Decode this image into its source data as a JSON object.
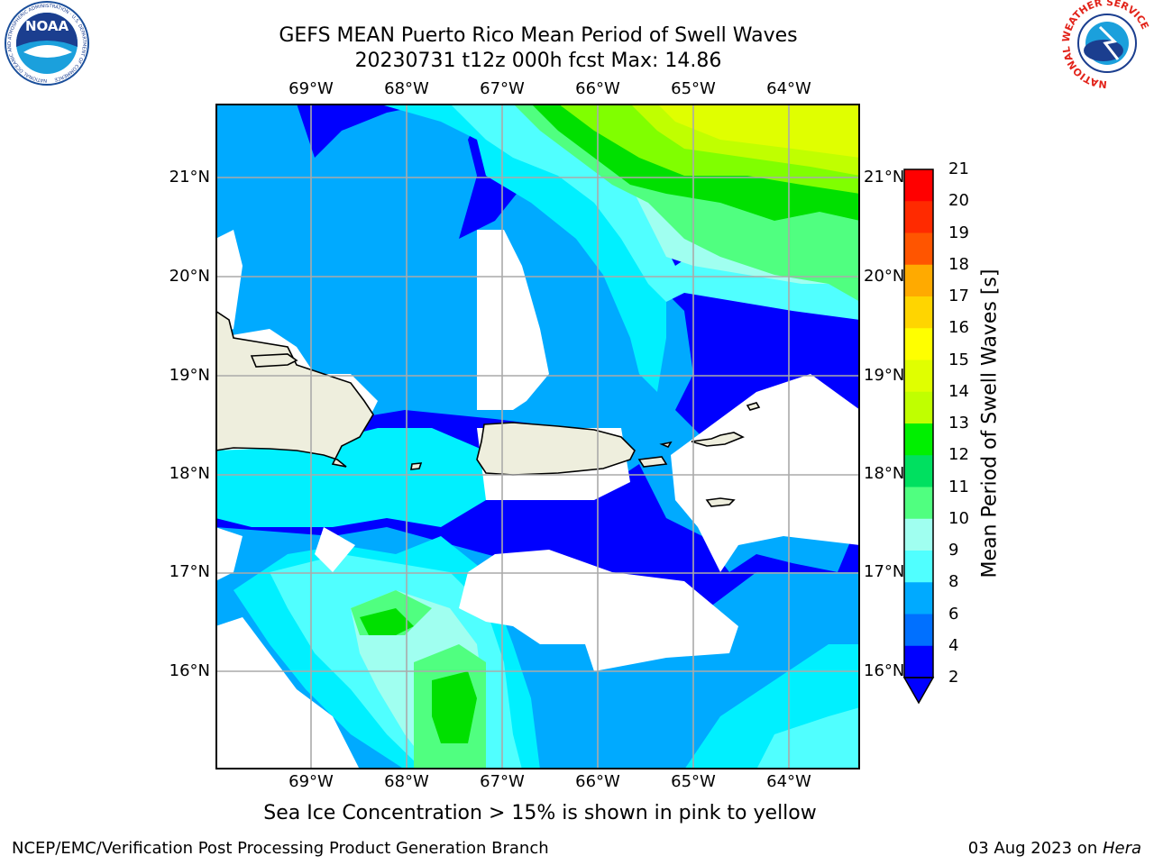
{
  "header": {
    "title_line1": "GEFS MEAN Puerto Rico Mean Period of Swell Waves",
    "title_line2": "20230731 t12z 000h fcst   Max: 14.86"
  },
  "map": {
    "lon_labels": [
      "69°W",
      "68°W",
      "67°W",
      "66°W",
      "65°W",
      "64°W"
    ],
    "lat_labels": [
      "21°N",
      "20°N",
      "19°N",
      "18°N",
      "17°N",
      "16°N"
    ],
    "extent": {
      "lon": [
        -70.0,
        -63.25
      ],
      "lat": [
        15.0,
        21.75
      ]
    }
  },
  "colorbar": {
    "label": "Mean Period of Swell Waves [s]",
    "ticks": [
      "21",
      "20",
      "19",
      "18",
      "17",
      "16",
      "15",
      "14",
      "13",
      "12",
      "11",
      "10",
      "9",
      "8",
      "6",
      "4",
      "2"
    ],
    "colors": [
      "#ff0000",
      "#ff2a00",
      "#ff5500",
      "#ff8000",
      "#ffaa00",
      "#ffd500",
      "#ffff00",
      "#e0ff00",
      "#c0ff00",
      "#80ff00",
      "#00f000",
      "#00e060",
      "#50ff80",
      "#a0fff0",
      "#50ffff",
      "#00f0ff",
      "#00aaff",
      "#0070ff",
      "#0000ff"
    ]
  },
  "caption": "Sea Ice Concentration > 15% is shown in pink to yellow",
  "footer": {
    "left": "NCEP/EMC/Verification Post Processing Product Generation Branch",
    "right_date": "03 Aug 2023 on ",
    "right_host": "Hera"
  },
  "logos": {
    "noaa": "NOAA",
    "nws": "NATIONAL WEATHER SERVICE",
    "noaa_ring": "NATIONAL OCEANIC AND ATMOSPHERIC ADMINISTRATION · U.S. DEPARTMENT OF COMMERCE"
  }
}
